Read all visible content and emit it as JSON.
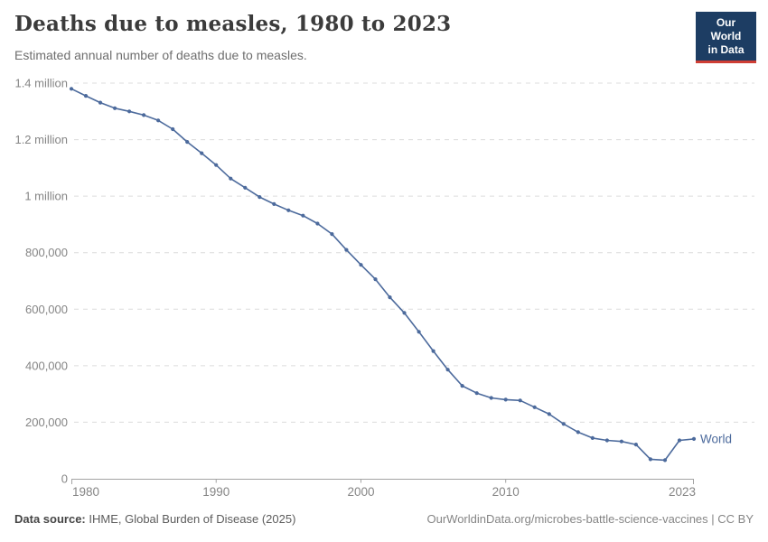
{
  "header": {
    "title": "Deaths due to measles, 1980 to 2023",
    "subtitle": "Estimated annual number of deaths due to measles.",
    "logo": {
      "line1": "Our World",
      "line2": "in Data",
      "bg_color": "#1d3d63",
      "stripe_color": "#cf3e34"
    }
  },
  "footer": {
    "source_label": "Data source:",
    "source_text": " IHME, Global Burden of Disease (2025)",
    "right_text": "OurWorldinData.org/microbes-battle-science-vaccines | CC BY"
  },
  "colors": {
    "line": "#4c6a9c",
    "grid": "#dcdcdc",
    "axis": "#a3a3a3",
    "tick_label": "#858585",
    "end_label": "#4c6a9c"
  },
  "chart_data": {
    "type": "line",
    "title": "Deaths due to measles, 1980 to 2023",
    "xlabel": "",
    "ylabel": "Estimated annual number of deaths",
    "xlim": [
      1980,
      2023
    ],
    "ylim": [
      0,
      1400000
    ],
    "grid": "horizontal-dashed",
    "legend_position": "end-of-line",
    "series": [
      {
        "name": "World",
        "x_start": 1980,
        "values": [
          1380000,
          1355000,
          1331000,
          1311000,
          1300000,
          1287000,
          1268000,
          1237000,
          1192000,
          1152000,
          1110000,
          1062000,
          1030000,
          997000,
          972000,
          950000,
          931000,
          903000,
          866000,
          810000,
          757000,
          706000,
          642000,
          587000,
          520000,
          452000,
          386000,
          329000,
          303000,
          286000,
          280000,
          277000,
          253000,
          229000,
          194000,
          165000,
          144000,
          136000,
          132000,
          121000,
          69000,
          66000,
          136000,
          141000
        ]
      }
    ],
    "yticks": [
      {
        "value": 0,
        "label": "0"
      },
      {
        "value": 200000,
        "label": "200,000"
      },
      {
        "value": 400000,
        "label": "400,000"
      },
      {
        "value": 600000,
        "label": "600,000"
      },
      {
        "value": 800000,
        "label": "800,000"
      },
      {
        "value": 1000000,
        "label": "1 million"
      },
      {
        "value": 1200000,
        "label": "1.2 million"
      },
      {
        "value": 1400000,
        "label": "1.4 million"
      }
    ],
    "xticks": [
      {
        "value": 1980,
        "label": "1980",
        "align": "start"
      },
      {
        "value": 1990,
        "label": "1990",
        "align": "middle"
      },
      {
        "value": 2000,
        "label": "2000",
        "align": "middle"
      },
      {
        "value": 2010,
        "label": "2010",
        "align": "middle"
      },
      {
        "value": 2023,
        "label": "2023",
        "align": "end"
      }
    ]
  }
}
